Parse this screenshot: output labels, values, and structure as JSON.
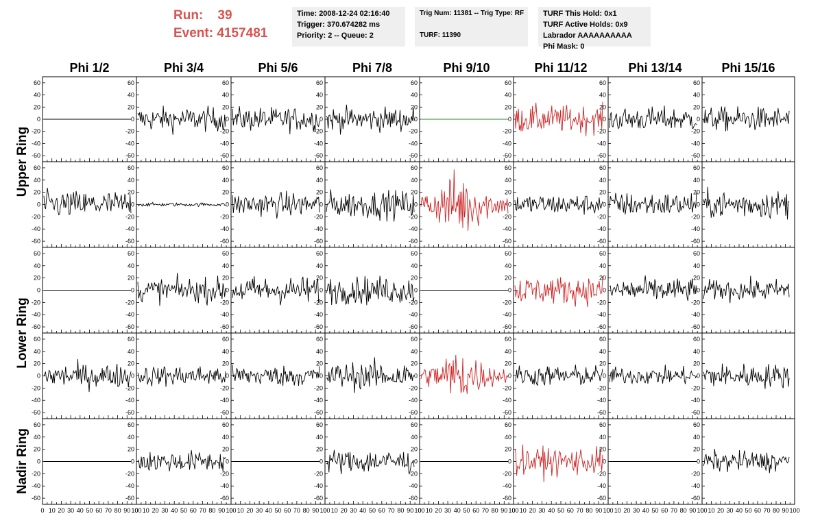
{
  "header": {
    "run_label": "Run:",
    "run_value": "39",
    "event_label": "Event:",
    "event_value": "4157481",
    "time": "Time: 2008-12-24 02:16:40",
    "trigger": "Trigger: 370.674282 ms",
    "priority": "Priority: 2 -- Queue: 2",
    "trig_num": "Trig Num: 11381 -- Trig Type: RF",
    "turf": "TURF: 11390",
    "turf_this_hold": "TURF This Hold: 0x1",
    "turf_active_holds": "TURF Active Holds: 0x9",
    "labrador": "Labrador AAAAAAAAAA",
    "phi_mask": "Phi Mask: 0"
  },
  "columns": [
    "Phi 1/2",
    "Phi 3/4",
    "Phi 5/6",
    "Phi 7/8",
    "Phi 9/10",
    "Phi 11/12",
    "Phi 13/14",
    "Phi 15/16"
  ],
  "ring_labels": [
    "Upper Ring",
    "Lower Ring",
    "Nadir Ring"
  ],
  "y_ticks": [
    "60",
    "40",
    "20",
    "0",
    "-20",
    "-40",
    "-60"
  ],
  "x_ticks": [
    "0",
    "10",
    "20",
    "30",
    "40",
    "50",
    "60",
    "70",
    "80",
    "90",
    "100"
  ],
  "colors": {
    "normal_trace": "#000000",
    "triggered_trace": "#cc2222",
    "flat_green": "#2a8a2a",
    "run_text": "#d9534f"
  },
  "chart_data": {
    "type": "line",
    "x_range": [
      0,
      100
    ],
    "y_range": [
      -70,
      70
    ],
    "panel_amplitude_grid": [
      [
        0,
        14,
        14,
        14,
        0,
        16,
        14,
        14
      ],
      [
        16,
        2,
        14,
        16,
        30,
        12,
        14,
        16
      ],
      [
        0,
        14,
        16,
        16,
        0,
        16,
        14,
        12
      ],
      [
        14,
        12,
        12,
        16,
        24,
        12,
        10,
        14
      ],
      [
        0,
        12,
        0,
        14,
        0,
        16,
        0,
        12
      ]
    ],
    "panel_color_grid": [
      [
        "black",
        "black",
        "black",
        "black",
        "green",
        "red",
        "black",
        "black"
      ],
      [
        "black",
        "black",
        "black",
        "black",
        "red",
        "black",
        "black",
        "black"
      ],
      [
        "black",
        "black",
        "black",
        "black",
        "black",
        "red",
        "black",
        "black"
      ],
      [
        "black",
        "black",
        "black",
        "black",
        "red",
        "black",
        "black",
        "black"
      ],
      [
        "black",
        "black",
        "black",
        "black",
        "black",
        "red",
        "black",
        "black"
      ]
    ]
  }
}
